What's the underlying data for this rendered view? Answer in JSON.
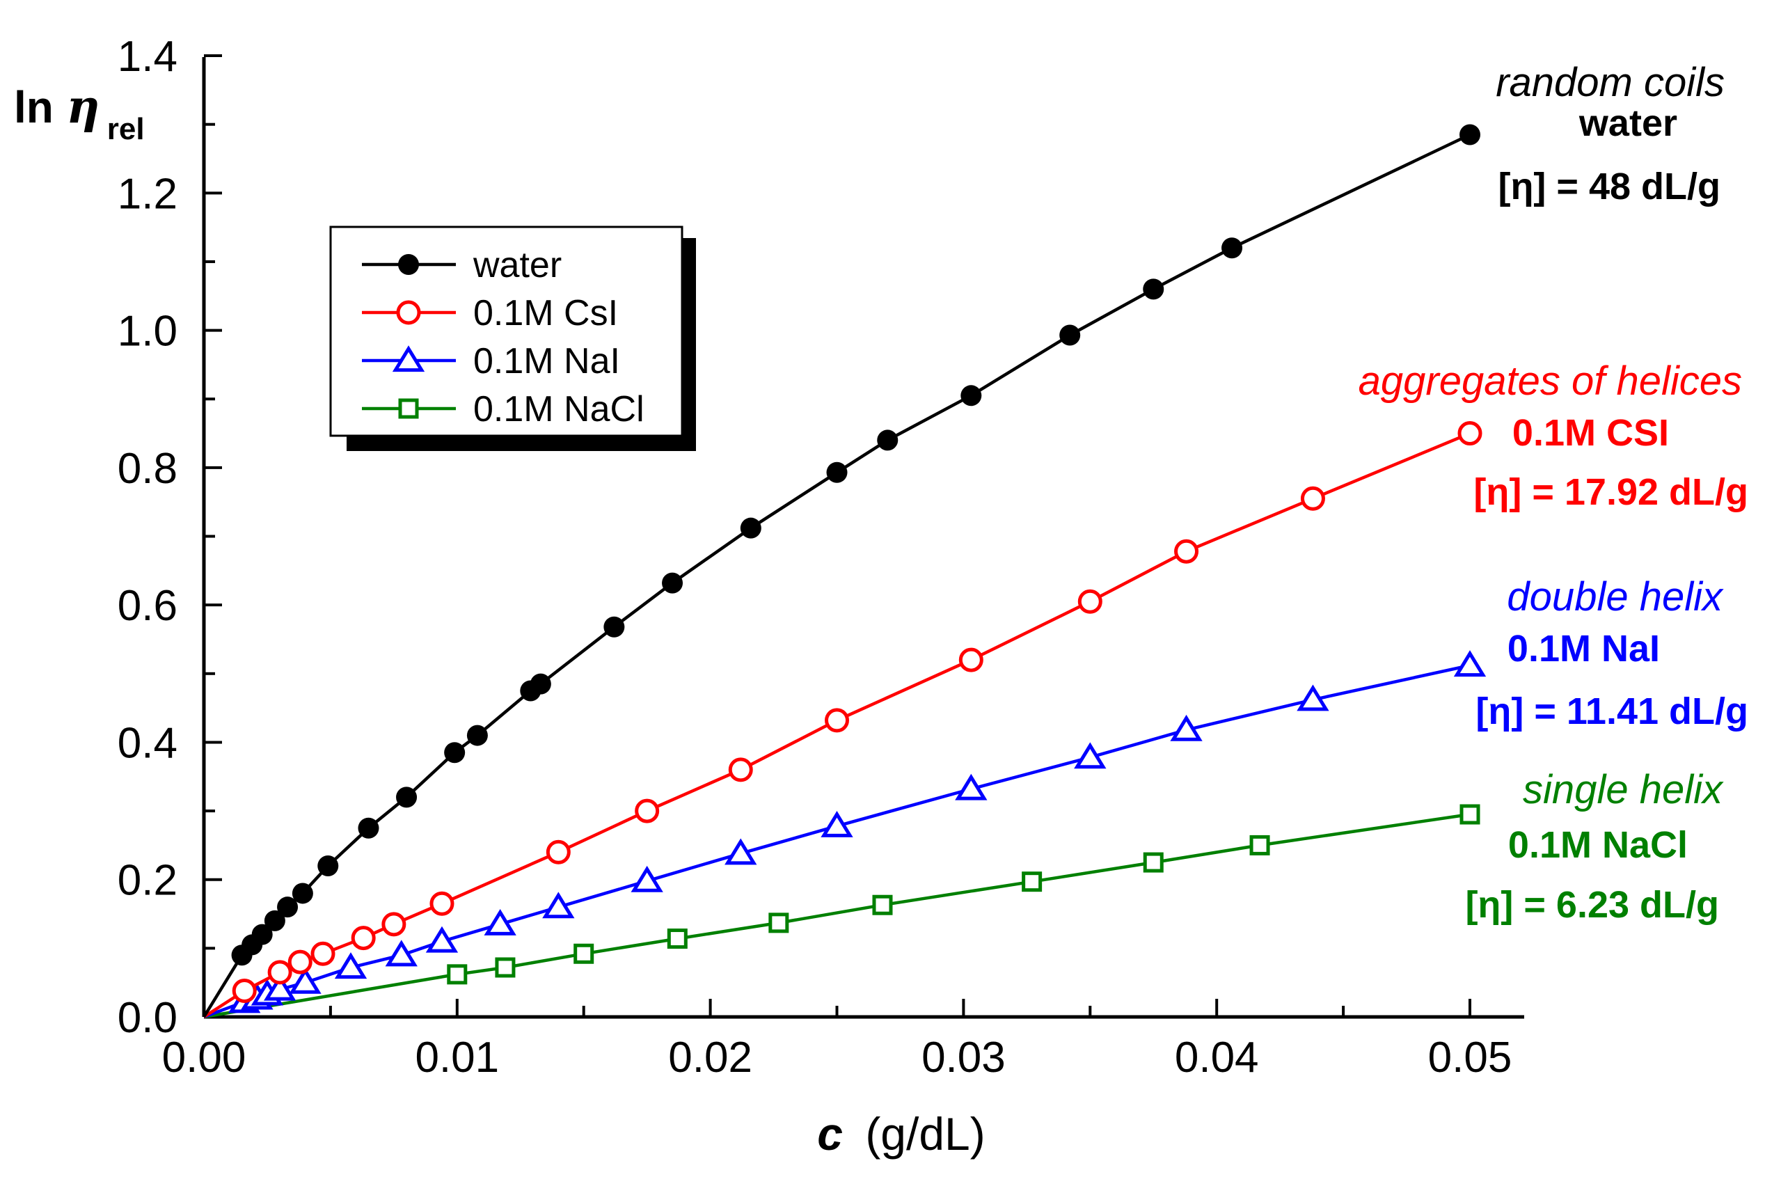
{
  "chart_data": {
    "type": "line",
    "title": "",
    "xlabel": {
      "italic": "c",
      "unit": "(g/dL)"
    },
    "ylabel": {
      "main": "ln",
      "symbol": "η",
      "subscript": "rel"
    },
    "xlim": [
      0,
      0.052
    ],
    "ylim": [
      0,
      1.4
    ],
    "xticks": [
      "0.00",
      "0.01",
      "0.02",
      "0.03",
      "0.04",
      "0.05"
    ],
    "yticks": [
      "0.0",
      "0.2",
      "0.4",
      "0.6",
      "0.8",
      "1.0",
      "1.2",
      "1.4"
    ],
    "legend_position": "upper-left",
    "series": [
      {
        "name": "water",
        "color": "#000000",
        "marker": "filled-circle",
        "x": [
          0,
          0.0015,
          0.0019,
          0.0023,
          0.0028,
          0.0033,
          0.0039,
          0.0049,
          0.0065,
          0.008,
          0.0099,
          0.0108,
          0.0129,
          0.0133,
          0.0162,
          0.0185,
          0.0216,
          0.025,
          0.027,
          0.0303,
          0.0342,
          0.0375,
          0.0406,
          0.05
        ],
        "y": [
          0,
          0.09,
          0.105,
          0.12,
          0.14,
          0.16,
          0.18,
          0.22,
          0.275,
          0.32,
          0.385,
          0.41,
          0.475,
          0.485,
          0.568,
          0.632,
          0.712,
          0.793,
          0.84,
          0.905,
          0.993,
          1.06,
          1.12,
          1.285
        ]
      },
      {
        "name": "0.1M CsI",
        "color": "#ff0000",
        "marker": "open-circle",
        "x": [
          0,
          0.0016,
          0.003,
          0.0038,
          0.0047,
          0.0063,
          0.0075,
          0.0094,
          0.014,
          0.0175,
          0.0212,
          0.025,
          0.0303,
          0.035,
          0.0388,
          0.0438,
          0.05
        ],
        "y": [
          0,
          0.038,
          0.065,
          0.08,
          0.092,
          0.115,
          0.135,
          0.165,
          0.24,
          0.3,
          0.36,
          0.432,
          0.52,
          0.605,
          0.678,
          0.755,
          0.85
        ]
      },
      {
        "name": "0.1M NaI",
        "color": "#0000ff",
        "marker": "open-triangle",
        "x": [
          0,
          0.0016,
          0.0021,
          0.0025,
          0.003,
          0.004,
          0.0058,
          0.0078,
          0.0094,
          0.0117,
          0.014,
          0.0175,
          0.0212,
          0.025,
          0.0303,
          0.035,
          0.0388,
          0.0438,
          0.05
        ],
        "y": [
          0,
          0.022,
          0.027,
          0.033,
          0.04,
          0.05,
          0.072,
          0.09,
          0.11,
          0.135,
          0.16,
          0.198,
          0.238,
          0.278,
          0.332,
          0.378,
          0.418,
          0.462,
          0.512
        ]
      },
      {
        "name": "0.1M NaCl",
        "color": "#008000",
        "marker": "open-square",
        "x": [
          0,
          0.01,
          0.0119,
          0.015,
          0.0187,
          0.0227,
          0.0268,
          0.0327,
          0.0375,
          0.0417,
          0.05
        ],
        "y": [
          0,
          0.062,
          0.072,
          0.092,
          0.114,
          0.137,
          0.163,
          0.197,
          0.225,
          0.25,
          0.295
        ]
      }
    ],
    "annotations": [
      {
        "series": "water",
        "color": "#000000",
        "italic": "random coils",
        "solvent": "water",
        "intrinsic": "[η] = 48 dL/g"
      },
      {
        "series": "0.1M CsI",
        "color": "#ff0000",
        "italic": "aggregates of helices",
        "solvent": "0.1M CSI",
        "intrinsic": "[η] = 17.92 dL/g"
      },
      {
        "series": "0.1M NaI",
        "color": "#0000ff",
        "italic": "double helix",
        "solvent": "0.1M NaI",
        "intrinsic": "[η] = 11.41 dL/g"
      },
      {
        "series": "0.1M NaCl",
        "color": "#008000",
        "italic": "single helix",
        "solvent": "0.1M NaCl",
        "intrinsic": "[η] = 6.23 dL/g"
      }
    ]
  }
}
